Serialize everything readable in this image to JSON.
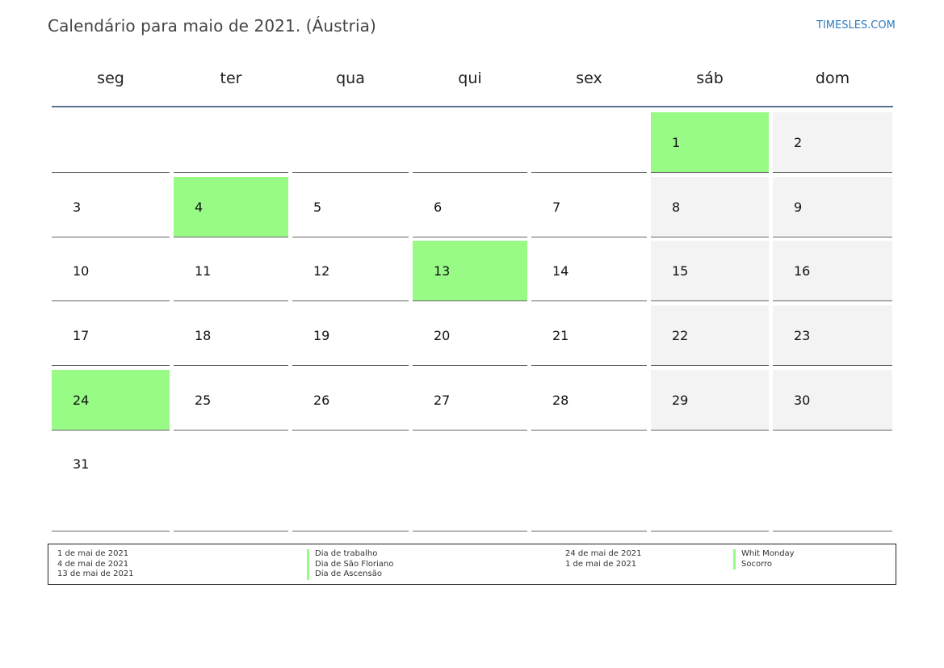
{
  "header": {
    "title": "Calendário para maio de 2021. (Áustria)",
    "brand": "TIMESLES.COM"
  },
  "colors": {
    "holiday": "#98fb86",
    "weekend": "#f3f3f3",
    "header_rule": "#5b7191",
    "brand": "#2e7bbf"
  },
  "weekdays": [
    "seg",
    "ter",
    "qua",
    "qui",
    "sex",
    "sáb",
    "dom"
  ],
  "weeks": [
    [
      {
        "day": "",
        "type": "normal"
      },
      {
        "day": "",
        "type": "normal"
      },
      {
        "day": "",
        "type": "normal"
      },
      {
        "day": "",
        "type": "normal"
      },
      {
        "day": "",
        "type": "normal"
      },
      {
        "day": "1",
        "type": "holiday"
      },
      {
        "day": "2",
        "type": "weekend"
      }
    ],
    [
      {
        "day": "3",
        "type": "normal"
      },
      {
        "day": "4",
        "type": "holiday"
      },
      {
        "day": "5",
        "type": "normal"
      },
      {
        "day": "6",
        "type": "normal"
      },
      {
        "day": "7",
        "type": "normal"
      },
      {
        "day": "8",
        "type": "weekend"
      },
      {
        "day": "9",
        "type": "weekend"
      }
    ],
    [
      {
        "day": "10",
        "type": "normal"
      },
      {
        "day": "11",
        "type": "normal"
      },
      {
        "day": "12",
        "type": "normal"
      },
      {
        "day": "13",
        "type": "holiday"
      },
      {
        "day": "14",
        "type": "normal"
      },
      {
        "day": "15",
        "type": "weekend"
      },
      {
        "day": "16",
        "type": "weekend"
      }
    ],
    [
      {
        "day": "17",
        "type": "normal"
      },
      {
        "day": "18",
        "type": "normal"
      },
      {
        "day": "19",
        "type": "normal"
      },
      {
        "day": "20",
        "type": "normal"
      },
      {
        "day": "21",
        "type": "normal"
      },
      {
        "day": "22",
        "type": "weekend"
      },
      {
        "day": "23",
        "type": "weekend"
      }
    ],
    [
      {
        "day": "24",
        "type": "holiday"
      },
      {
        "day": "25",
        "type": "normal"
      },
      {
        "day": "26",
        "type": "normal"
      },
      {
        "day": "27",
        "type": "normal"
      },
      {
        "day": "28",
        "type": "normal"
      },
      {
        "day": "29",
        "type": "weekend"
      },
      {
        "day": "30",
        "type": "weekend"
      }
    ],
    [
      {
        "day": "31",
        "type": "normal"
      },
      {
        "day": "",
        "type": "normal"
      },
      {
        "day": "",
        "type": "normal"
      },
      {
        "day": "",
        "type": "normal"
      },
      {
        "day": "",
        "type": "normal"
      },
      {
        "day": "",
        "type": "normal"
      },
      {
        "day": "",
        "type": "normal"
      }
    ]
  ],
  "holidays_left": [
    {
      "date": "1 de mai de 2021",
      "name": "Dia de trabalho"
    },
    {
      "date": "4 de mai de 2021",
      "name": "Dia de São Floriano"
    },
    {
      "date": "13 de mai de 2021",
      "name": "Dia de Ascensão"
    }
  ],
  "holidays_right": [
    {
      "date": "24 de mai de 2021",
      "name": "Whit Monday"
    },
    {
      "date": "1 de mai de 2021",
      "name": "Socorro"
    }
  ]
}
